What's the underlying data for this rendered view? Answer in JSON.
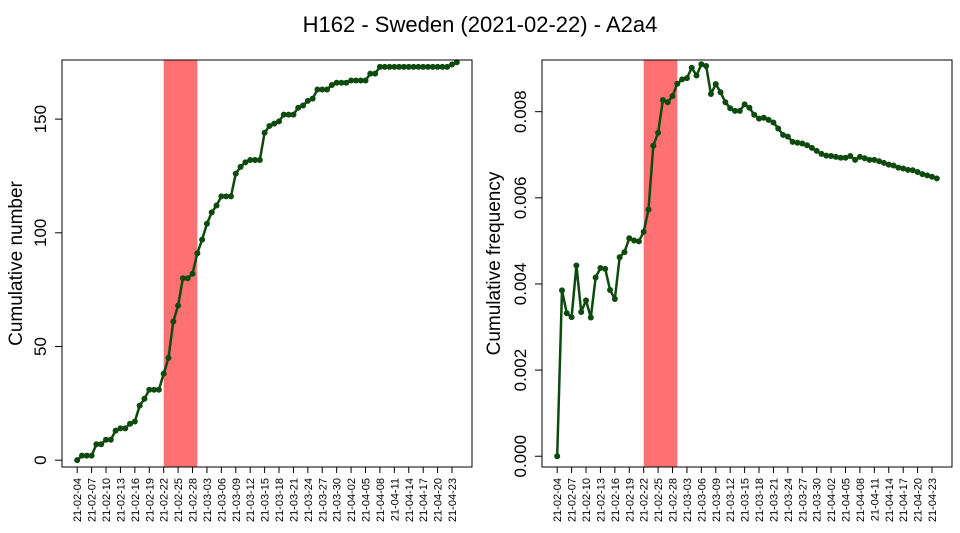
{
  "title": "H162 - Sweden (2021-02-22) - A2a4",
  "colors": {
    "line": "#0d4a0d",
    "highlight": "#ff7073",
    "axis": "#000000"
  },
  "chart_data": [
    {
      "type": "line",
      "ylabel": "Cumulative number",
      "ylim": [
        -3,
        176
      ],
      "yticks": [
        0,
        50,
        100,
        150
      ],
      "x_start": "2021-02-04",
      "x_end": "2021-04-24",
      "xtick_labels": [
        "21-02-04",
        "21-02-07",
        "21-02-10",
        "21-02-13",
        "21-02-16",
        "21-02-19",
        "21-02-22",
        "21-02-25",
        "21-02-28",
        "21-03-03",
        "21-03-06",
        "21-03-09",
        "21-03-12",
        "21-03-15",
        "21-03-18",
        "21-03-21",
        "21-03-24",
        "21-03-27",
        "21-03-30",
        "21-04-02",
        "21-04-05",
        "21-04-08",
        "21-04-11",
        "21-04-14",
        "21-04-17",
        "21-04-20",
        "21-04-23"
      ],
      "highlight": [
        "2021-02-22",
        "2021-03-01"
      ],
      "x": [
        "2021-02-04",
        "2021-02-05",
        "2021-02-06",
        "2021-02-07",
        "2021-02-08",
        "2021-02-09",
        "2021-02-10",
        "2021-02-11",
        "2021-02-12",
        "2021-02-13",
        "2021-02-14",
        "2021-02-15",
        "2021-02-16",
        "2021-02-17",
        "2021-02-18",
        "2021-02-19",
        "2021-02-20",
        "2021-02-21",
        "2021-02-22",
        "2021-02-23",
        "2021-02-24",
        "2021-02-25",
        "2021-02-26",
        "2021-02-27",
        "2021-02-28",
        "2021-03-01",
        "2021-03-02",
        "2021-03-03",
        "2021-03-04",
        "2021-03-05",
        "2021-03-06",
        "2021-03-07",
        "2021-03-08",
        "2021-03-09",
        "2021-03-10",
        "2021-03-11",
        "2021-03-12",
        "2021-03-13",
        "2021-03-14",
        "2021-03-15",
        "2021-03-16",
        "2021-03-17",
        "2021-03-18",
        "2021-03-19",
        "2021-03-20",
        "2021-03-21",
        "2021-03-22",
        "2021-03-23",
        "2021-03-24",
        "2021-03-25",
        "2021-03-26",
        "2021-03-27",
        "2021-03-28",
        "2021-03-29",
        "2021-03-30",
        "2021-03-31",
        "2021-04-01",
        "2021-04-02",
        "2021-04-03",
        "2021-04-04",
        "2021-04-05",
        "2021-04-06",
        "2021-04-07",
        "2021-04-08",
        "2021-04-09",
        "2021-04-10",
        "2021-04-11",
        "2021-04-12",
        "2021-04-13",
        "2021-04-14",
        "2021-04-15",
        "2021-04-16",
        "2021-04-17",
        "2021-04-18",
        "2021-04-19",
        "2021-04-20",
        "2021-04-21",
        "2021-04-22",
        "2021-04-23",
        "2021-04-24"
      ],
      "values": [
        0,
        2,
        2,
        2,
        7,
        7,
        9,
        9,
        13,
        14,
        14,
        16,
        17,
        24,
        27,
        31,
        31,
        31,
        38,
        45,
        61,
        68,
        80,
        80,
        82,
        91,
        97,
        104,
        109,
        112,
        116,
        116,
        116,
        126,
        129,
        131,
        132,
        132,
        132,
        144,
        147,
        148,
        149,
        152,
        152,
        152,
        155,
        156,
        158,
        159,
        163,
        163,
        163,
        165,
        166,
        166,
        166,
        167,
        167,
        167,
        167,
        170,
        170,
        173,
        173,
        173,
        173,
        173,
        173,
        173,
        173,
        173,
        173,
        173,
        173,
        173,
        173,
        173,
        174,
        175
      ]
    },
    {
      "type": "line",
      "ylabel": "Cumulative frequency",
      "ylim": [
        -0.00025,
        0.0092
      ],
      "yticks": [
        0.0,
        0.002,
        0.004,
        0.006,
        0.008
      ],
      "ytick_labels": [
        "0.000",
        "0.002",
        "0.004",
        "0.006",
        "0.008"
      ],
      "x_start": "2021-02-04",
      "x_end": "2021-04-24",
      "xtick_labels": [
        "21-02-04",
        "21-02-07",
        "21-02-10",
        "21-02-13",
        "21-02-16",
        "21-02-19",
        "21-02-22",
        "21-02-25",
        "21-02-28",
        "21-03-03",
        "21-03-06",
        "21-03-09",
        "21-03-12",
        "21-03-15",
        "21-03-18",
        "21-03-21",
        "21-03-24",
        "21-03-27",
        "21-03-30",
        "21-04-02",
        "21-04-05",
        "21-04-08",
        "21-04-11",
        "21-04-14",
        "21-04-17",
        "21-04-20",
        "21-04-23"
      ],
      "highlight": [
        "2021-02-22",
        "2021-03-01"
      ],
      "x": [
        "2021-02-04",
        "2021-02-05",
        "2021-02-06",
        "2021-02-07",
        "2021-02-08",
        "2021-02-09",
        "2021-02-10",
        "2021-02-11",
        "2021-02-12",
        "2021-02-13",
        "2021-02-14",
        "2021-02-15",
        "2021-02-16",
        "2021-02-17",
        "2021-02-18",
        "2021-02-19",
        "2021-02-20",
        "2021-02-21",
        "2021-02-22",
        "2021-02-23",
        "2021-02-24",
        "2021-02-25",
        "2021-02-26",
        "2021-02-27",
        "2021-02-28",
        "2021-03-01",
        "2021-03-02",
        "2021-03-03",
        "2021-03-04",
        "2021-03-05",
        "2021-03-06",
        "2021-03-07",
        "2021-03-08",
        "2021-03-09",
        "2021-03-10",
        "2021-03-11",
        "2021-03-12",
        "2021-03-13",
        "2021-03-14",
        "2021-03-15",
        "2021-03-16",
        "2021-03-17",
        "2021-03-18",
        "2021-03-19",
        "2021-03-20",
        "2021-03-21",
        "2021-03-22",
        "2021-03-23",
        "2021-03-24",
        "2021-03-25",
        "2021-03-26",
        "2021-03-27",
        "2021-03-28",
        "2021-03-29",
        "2021-03-30",
        "2021-03-31",
        "2021-04-01",
        "2021-04-02",
        "2021-04-03",
        "2021-04-04",
        "2021-04-05",
        "2021-04-06",
        "2021-04-07",
        "2021-04-08",
        "2021-04-09",
        "2021-04-10",
        "2021-04-11",
        "2021-04-12",
        "2021-04-13",
        "2021-04-14",
        "2021-04-15",
        "2021-04-16",
        "2021-04-17",
        "2021-04-18",
        "2021-04-19",
        "2021-04-20",
        "2021-04-21",
        "2021-04-22",
        "2021-04-23",
        "2021-04-24"
      ],
      "values": [
        0.0,
        0.00385,
        0.00332,
        0.00323,
        0.00443,
        0.00335,
        0.00362,
        0.00322,
        0.00415,
        0.00437,
        0.00435,
        0.00386,
        0.00365,
        0.00462,
        0.00474,
        0.00506,
        0.00501,
        0.00499,
        0.00521,
        0.00573,
        0.00721,
        0.00751,
        0.00827,
        0.00822,
        0.00836,
        0.00865,
        0.00875,
        0.00878,
        0.00902,
        0.00884,
        0.0091,
        0.00906,
        0.00841,
        0.00864,
        0.00845,
        0.00822,
        0.00808,
        0.00802,
        0.00802,
        0.00817,
        0.00809,
        0.00793,
        0.00784,
        0.00786,
        0.00781,
        0.00775,
        0.00761,
        0.00746,
        0.00742,
        0.0073,
        0.00728,
        0.00726,
        0.00722,
        0.00716,
        0.00709,
        0.00702,
        0.00698,
        0.00697,
        0.00695,
        0.00693,
        0.00693,
        0.00697,
        0.00688,
        0.00695,
        0.00692,
        0.00688,
        0.00688,
        0.00685,
        0.00681,
        0.00677,
        0.00675,
        0.0067,
        0.00668,
        0.00665,
        0.00664,
        0.0066,
        0.00655,
        0.00652,
        0.00649,
        0.00645
      ]
    }
  ]
}
